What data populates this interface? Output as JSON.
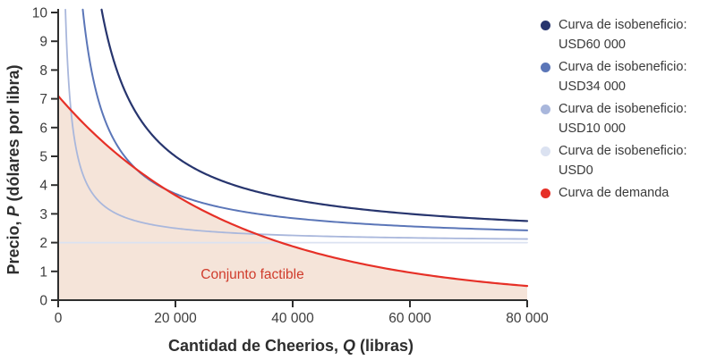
{
  "chart_data": {
    "type": "line",
    "title": "",
    "xlabel": "Cantidad de Cheerios, Q (libras)",
    "xlabel_parts": {
      "pre": "Cantidad de Cheerios, ",
      "var": "Q",
      "post": " (libras)"
    },
    "ylabel": "Precio, P (dólares por libra)",
    "ylabel_parts": {
      "pre": "Precio, ",
      "var": "P",
      "post": " (dólares por libra)"
    },
    "xlim": [
      0,
      80000
    ],
    "ylim": [
      0,
      10
    ],
    "grid": false,
    "legend_position": "right",
    "x_ticks": [
      {
        "value": 0,
        "label": "0"
      },
      {
        "value": 20000,
        "label": "20 000"
      },
      {
        "value": 40000,
        "label": "40 000"
      },
      {
        "value": 60000,
        "label": "60 000"
      },
      {
        "value": 80000,
        "label": "80 000"
      }
    ],
    "y_ticks": [
      {
        "value": 0,
        "label": "0"
      },
      {
        "value": 1,
        "label": "1"
      },
      {
        "value": 2,
        "label": "2"
      },
      {
        "value": 3,
        "label": "3"
      },
      {
        "value": 4,
        "label": "4"
      },
      {
        "value": 5,
        "label": "5"
      },
      {
        "value": 6,
        "label": "6"
      },
      {
        "value": 7,
        "label": "7"
      },
      {
        "value": 8,
        "label": "8"
      },
      {
        "value": 9,
        "label": "9"
      },
      {
        "value": 10,
        "label": "10"
      }
    ],
    "series": [
      {
        "name": "Curva de isobeneficio: USD60 000",
        "kind": "isoprofit",
        "unit_cost": 2,
        "profit": 60000,
        "color": "#27356e",
        "width": 2.2,
        "points": [
          [
            7500,
            10
          ],
          [
            8571,
            9
          ],
          [
            10000,
            8
          ],
          [
            12000,
            7
          ],
          [
            15000,
            6
          ],
          [
            20000,
            5
          ],
          [
            24000,
            4.5
          ],
          [
            30000,
            4
          ],
          [
            40000,
            3.5
          ],
          [
            50000,
            3.2
          ],
          [
            60000,
            3
          ],
          [
            70000,
            2.86
          ],
          [
            80000,
            2.75
          ]
        ]
      },
      {
        "name": "Curva de isobeneficio: USD34 000",
        "kind": "isoprofit",
        "unit_cost": 2,
        "profit": 34000,
        "color": "#5b76b8",
        "width": 2,
        "points": [
          [
            4250,
            10
          ],
          [
            4857,
            9
          ],
          [
            5667,
            8
          ],
          [
            6800,
            7
          ],
          [
            8500,
            6
          ],
          [
            11333,
            5
          ],
          [
            14000,
            4.43
          ],
          [
            17000,
            4
          ],
          [
            22667,
            3.5
          ],
          [
            34000,
            3
          ],
          [
            45333,
            2.75
          ],
          [
            68000,
            2.5
          ],
          [
            80000,
            2.43
          ]
        ]
      },
      {
        "name": "Curva de isobeneficio: USD10 000",
        "kind": "isoprofit",
        "unit_cost": 2,
        "profit": 10000,
        "color": "#a9b7dc",
        "width": 1.8,
        "points": [
          [
            1250,
            10
          ],
          [
            1429,
            9
          ],
          [
            1667,
            8
          ],
          [
            2000,
            7
          ],
          [
            2500,
            6
          ],
          [
            3333,
            5
          ],
          [
            5000,
            4
          ],
          [
            6667,
            3.5
          ],
          [
            10000,
            3
          ],
          [
            13333,
            2.75
          ],
          [
            20000,
            2.5
          ],
          [
            40000,
            2.25
          ],
          [
            60000,
            2.17
          ],
          [
            80000,
            2.13
          ]
        ]
      },
      {
        "name": "Curva de isobeneficio: USD0",
        "kind": "isoprofit",
        "unit_cost": 2,
        "profit": 0,
        "color": "#dbe2f1",
        "width": 1.8,
        "points": [
          [
            0,
            2
          ],
          [
            80000,
            2
          ]
        ]
      },
      {
        "name": "Curva de demanda",
        "kind": "demand",
        "color": "#e63027",
        "width": 2.2,
        "p_intercept": 7.1,
        "decay": 30000,
        "points": [
          [
            0,
            7.1
          ],
          [
            2500,
            6.53
          ],
          [
            5000,
            6.01
          ],
          [
            7500,
            5.53
          ],
          [
            10000,
            5.09
          ],
          [
            12500,
            4.68
          ],
          [
            15000,
            4.31
          ],
          [
            17500,
            3.96
          ],
          [
            20000,
            3.65
          ],
          [
            25000,
            3.09
          ],
          [
            30000,
            2.61
          ],
          [
            35000,
            2.21
          ],
          [
            40000,
            1.87
          ],
          [
            45000,
            1.58
          ],
          [
            50000,
            1.34
          ],
          [
            55000,
            1.14
          ],
          [
            60000,
            0.96
          ],
          [
            65000,
            0.81
          ],
          [
            70000,
            0.69
          ],
          [
            75000,
            0.58
          ],
          [
            80000,
            0.49
          ]
        ]
      }
    ],
    "feasible_set": {
      "label": "Conjunto factible",
      "fill_color": "#f5e4d9",
      "label_color": "#d03c2c"
    }
  },
  "legend": {
    "items": [
      {
        "line1": "Curva de isobeneficio:",
        "line2": "USD60 000",
        "color": "#27356e"
      },
      {
        "line1": "Curva de isobeneficio:",
        "line2": "USD34 000",
        "color": "#5b76b8"
      },
      {
        "line1": "Curva de isobeneficio:",
        "line2": "USD10 000",
        "color": "#a9b7dc"
      },
      {
        "line1": "Curva de isobeneficio:",
        "line2": "USD0",
        "color": "#dbe2f1"
      },
      {
        "line1": "Curva de demanda",
        "line2": "",
        "color": "#e63027"
      }
    ],
    "text_color": "#3a3a3a"
  },
  "axis_style": {
    "axis_color": "#2e2e2e",
    "tick_color": "#2e2e2e",
    "tick_label_color": "#3d3d3d"
  }
}
